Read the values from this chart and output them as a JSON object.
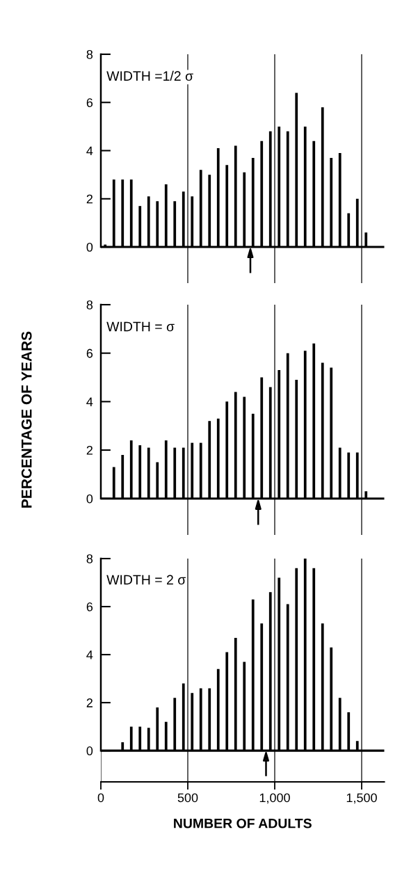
{
  "chart_data": [
    {
      "type": "bar",
      "annotations": [
        "WIDTH =1/2 σ"
      ],
      "x": [
        25,
        75,
        125,
        175,
        225,
        275,
        325,
        375,
        425,
        475,
        525,
        575,
        625,
        675,
        725,
        775,
        825,
        875,
        925,
        975,
        1025,
        1075,
        1125,
        1175,
        1225,
        1275,
        1325,
        1375,
        1425,
        1475,
        1525
      ],
      "values": [
        0.1,
        2.8,
        2.8,
        2.8,
        1.7,
        2.1,
        1.9,
        2.6,
        1.9,
        2.3,
        2.1,
        3.2,
        3.0,
        4.1,
        3.4,
        4.2,
        3.1,
        3.7,
        4.4,
        4.8,
        5.0,
        4.8,
        6.4,
        5.0,
        4.4,
        5.8,
        3.7,
        3.9,
        1.4,
        2.0,
        0.6
      ],
      "color": "#000000",
      "xlim": [
        0,
        1630
      ],
      "ylim": [
        -1.5,
        8
      ],
      "yticks": [
        0,
        2,
        4,
        6,
        8
      ],
      "xticks": [
        {
          "value": 500,
          "label": null
        },
        {
          "value": 1000,
          "label": null
        },
        {
          "value": 1500,
          "label": null
        }
      ],
      "grid": "x",
      "tick_labels": "y",
      "ref_lines": [
        {
          "axis": "x",
          "value": 860,
          "label": null
        }
      ]
    },
    {
      "type": "bar",
      "annotations": [
        "WIDTH = σ"
      ],
      "ylabel": "PERCENTAGE OF YEARS",
      "x": [
        75,
        125,
        175,
        225,
        275,
        325,
        375,
        425,
        475,
        525,
        575,
        625,
        675,
        725,
        775,
        825,
        875,
        925,
        975,
        1025,
        1075,
        1125,
        1175,
        1225,
        1275,
        1325,
        1375,
        1425,
        1475,
        1525
      ],
      "values": [
        1.3,
        1.8,
        2.4,
        2.2,
        2.1,
        1.5,
        2.4,
        2.1,
        2.1,
        2.3,
        2.3,
        3.2,
        3.3,
        4.0,
        4.4,
        4.2,
        3.5,
        5.0,
        4.6,
        5.3,
        6.0,
        4.9,
        6.1,
        6.4,
        5.6,
        5.4,
        2.1,
        1.9,
        1.9,
        0.3
      ],
      "color": "#000000",
      "xlim": [
        0,
        1630
      ],
      "ylim": [
        -1.5,
        8
      ],
      "yticks": [
        0,
        2,
        4,
        6,
        8
      ],
      "xticks": [
        {
          "value": 500,
          "label": null
        },
        {
          "value": 1000,
          "label": null
        },
        {
          "value": 1500,
          "label": null
        }
      ],
      "grid": "x",
      "tick_labels": "y",
      "ref_lines": [
        {
          "axis": "x",
          "value": 905,
          "label": null
        }
      ]
    },
    {
      "type": "bar",
      "annotations": [
        "WIDTH = 2 σ"
      ],
      "xlabel": "NUMBER OF ADULTS",
      "x": [
        125,
        175,
        225,
        275,
        325,
        375,
        425,
        475,
        525,
        575,
        625,
        675,
        725,
        775,
        825,
        875,
        925,
        975,
        1025,
        1075,
        1125,
        1175,
        1225,
        1275,
        1325,
        1375,
        1425,
        1475
      ],
      "values": [
        0.35,
        1.0,
        1.0,
        0.95,
        1.8,
        1.2,
        2.2,
        2.8,
        2.4,
        2.6,
        2.6,
        3.4,
        4.1,
        4.7,
        3.7,
        6.3,
        5.3,
        6.6,
        7.2,
        6.1,
        7.6,
        8.0,
        7.6,
        5.3,
        4.3,
        2.2,
        1.6,
        0.4
      ],
      "color": "#000000",
      "xlim": [
        0,
        1630
      ],
      "ylim": [
        -1.3,
        8
      ],
      "yticks": [
        0,
        2,
        4,
        6,
        8
      ],
      "xticks": [
        0,
        500,
        {
          "value": 1000,
          "label": "1,000"
        },
        {
          "value": 1500,
          "label": "1,500"
        }
      ],
      "grid": "x",
      "ref_lines": [
        {
          "axis": "x",
          "value": 950,
          "label": null
        }
      ]
    }
  ]
}
